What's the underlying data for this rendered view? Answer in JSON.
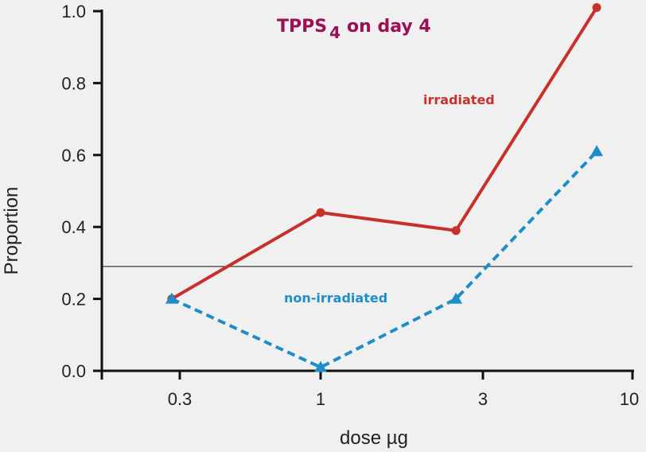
{
  "chart_data": {
    "type": "line",
    "title": "TPPS",
    "title_subscript": "4",
    "title_suffix": "on day 4",
    "xlabel": "dose µg",
    "ylabel": "Proportion",
    "x_scale": "log",
    "x_ticks": [
      0.3,
      1,
      3,
      10
    ],
    "x_tick_labels": [
      "0.3",
      "1",
      "3",
      "10"
    ],
    "y_ticks": [
      0.0,
      0.2,
      0.4,
      0.6,
      0.8,
      1.0
    ],
    "y_tick_labels": [
      "0.0",
      "0.2",
      "0.4",
      "0.6",
      "0.8",
      "1.0"
    ],
    "ylim": [
      0,
      1.0
    ],
    "grid": false,
    "reference_line_y": 0.29,
    "series": [
      {
        "name": "irradiated",
        "color": "#c8302a",
        "style": "solid",
        "marker": "circle",
        "x": [
          0.28,
          1,
          2.5,
          7.5
        ],
        "values": [
          0.2,
          0.44,
          0.39,
          1.01
        ]
      },
      {
        "name": "non-irradiated",
        "color": "#1e8ec8",
        "style": "dashed",
        "marker": "triangle",
        "x": [
          0.28,
          1,
          2.5,
          7.5
        ],
        "values": [
          0.2,
          0.01,
          0.2,
          0.61
        ]
      }
    ]
  }
}
